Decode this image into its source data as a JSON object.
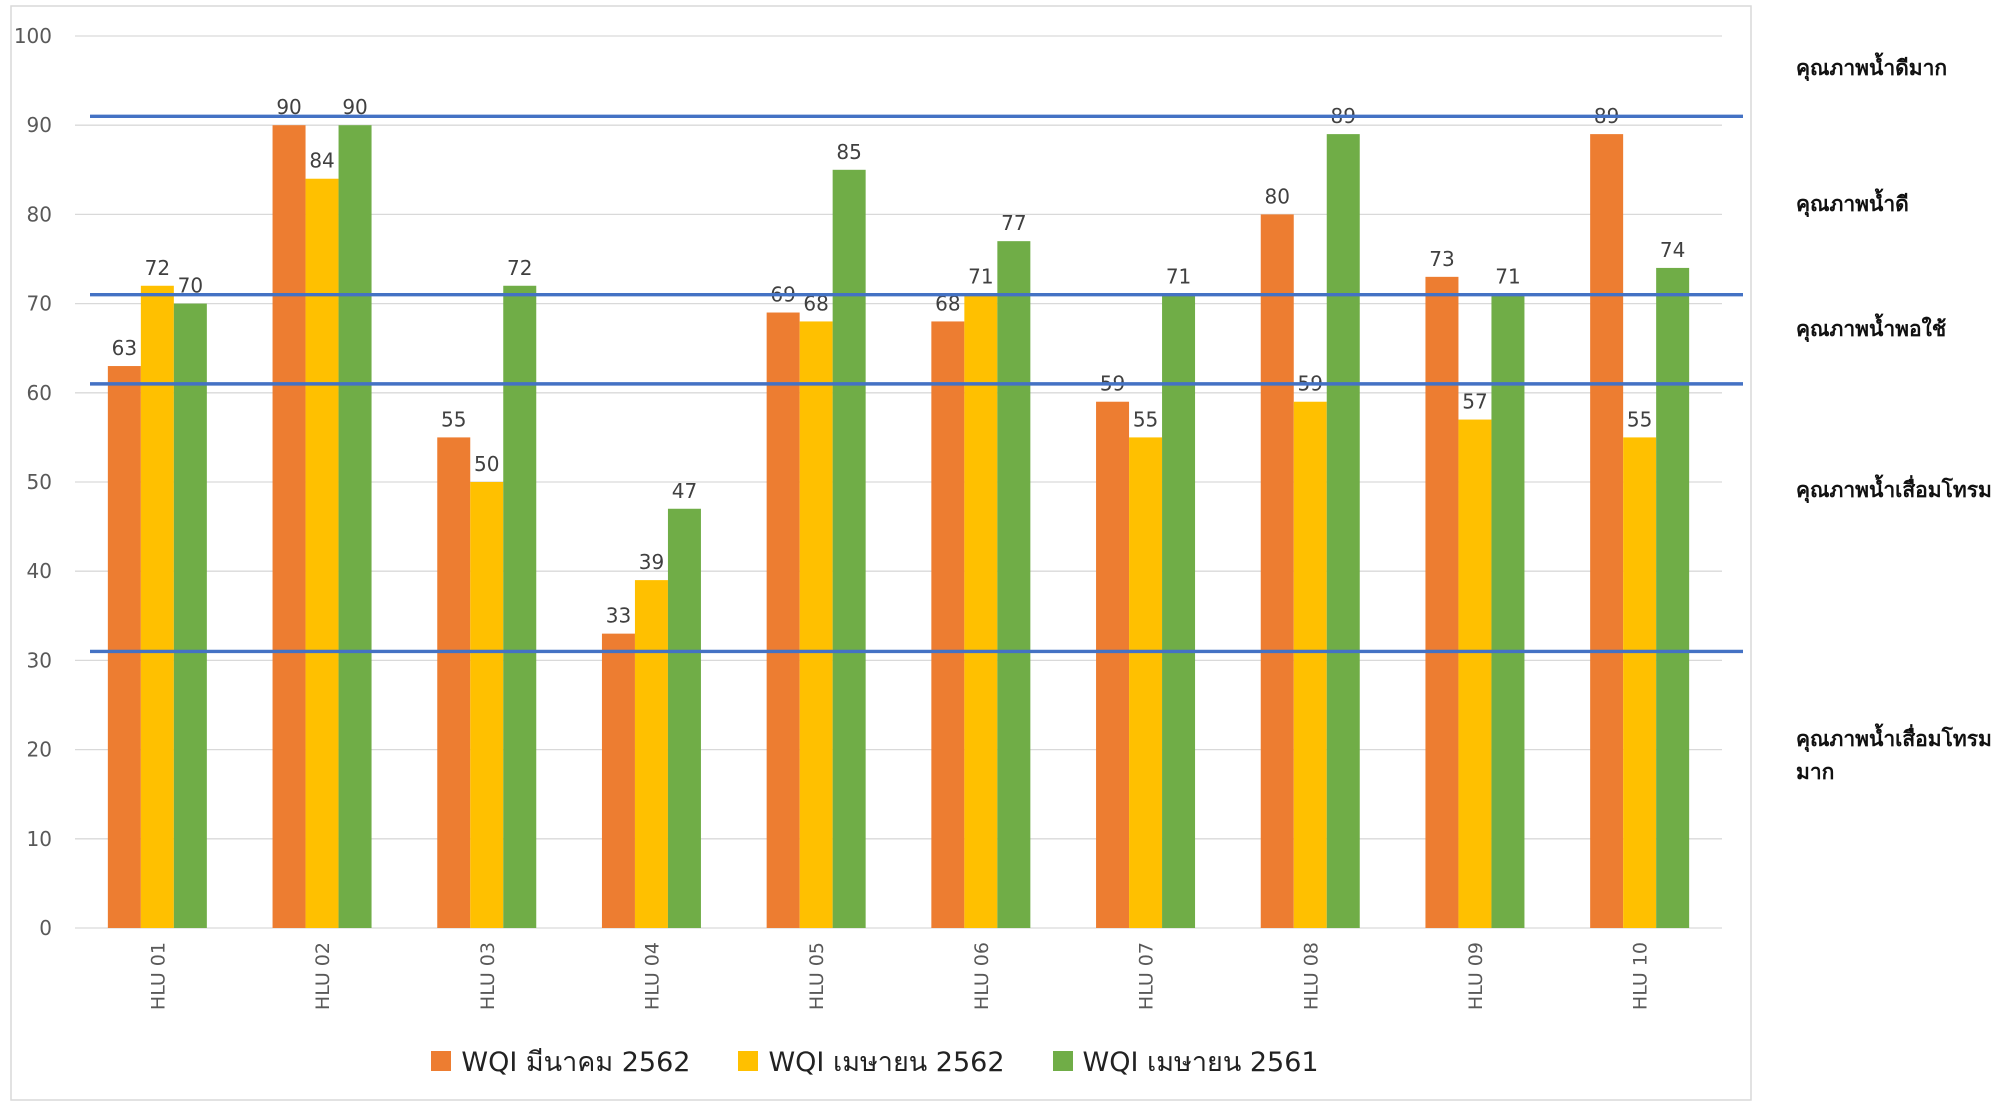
{
  "chart_data": {
    "type": "bar",
    "title": "",
    "xlabel": "",
    "ylabel": "",
    "ylim": [
      0,
      100
    ],
    "yticks": [
      0,
      10,
      20,
      30,
      40,
      50,
      60,
      70,
      80,
      90,
      100
    ],
    "grid": true,
    "legend_position": "bottom",
    "categories": [
      "HLU 01",
      "HLU 02",
      "HLU 03",
      "HLU 04",
      "HLU 05",
      "HLU 06",
      "HLU 07",
      "HLU 08",
      "HLU 09",
      "HLU 10"
    ],
    "series": [
      {
        "name": "WQI มีนาคม 2562",
        "color": "#ED7D31",
        "values": [
          63,
          90,
          55,
          33,
          69,
          68,
          59,
          80,
          73,
          89
        ]
      },
      {
        "name": "WQI เมษายน 2562",
        "color": "#FFC000",
        "values": [
          72,
          84,
          50,
          39,
          68,
          71,
          55,
          59,
          57,
          55
        ]
      },
      {
        "name": "WQI เมษายน 2561",
        "color": "#70AD47",
        "values": [
          70,
          90,
          72,
          47,
          85,
          77,
          71,
          89,
          71,
          74
        ]
      }
    ],
    "reference_lines": {
      "color": "#4472C4",
      "values": [
        91,
        71,
        61,
        31
      ]
    },
    "zone_labels": [
      "คุณภาพน้ำดีมาก",
      "คุณภาพน้ำดี",
      "คุณภาพน้ำพอใช้",
      "คุณภาพน้ำเสื่อมโทรม",
      "คุณภาพน้ำเสื่อมโทรมมาก"
    ]
  }
}
